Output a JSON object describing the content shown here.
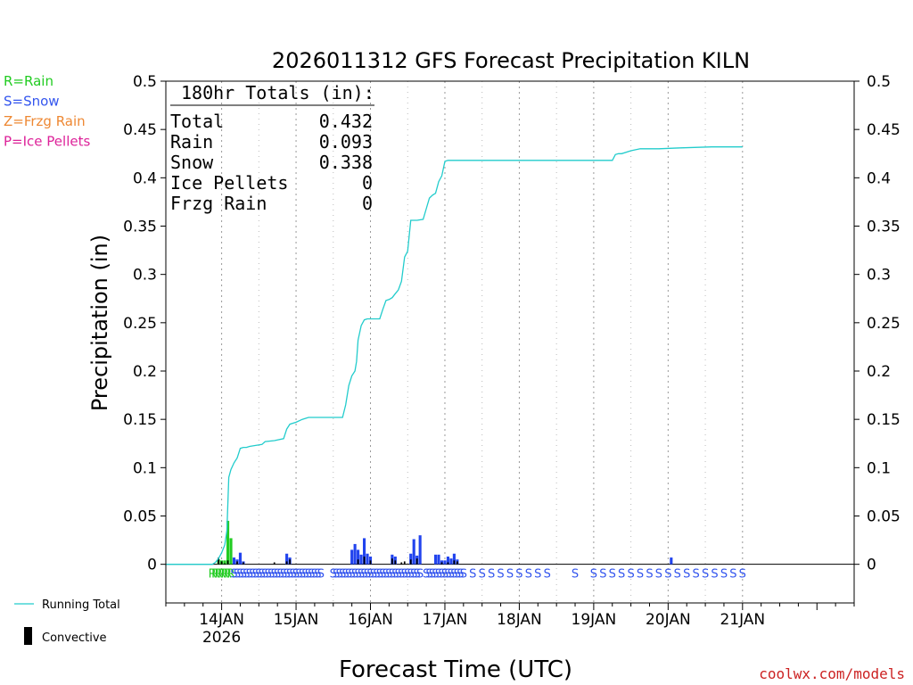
{
  "chart_data": {
    "type": "bar",
    "title": "2026011312 GFS Forecast Precipitation KILN",
    "xlabel": "Forecast Time (UTC)",
    "ylabel": "Precipitation (in)",
    "ylim": [
      -0.04,
      0.5
    ],
    "xlim_hours": [
      -6,
      216
    ],
    "y_ticks": [
      "0",
      "0.05",
      "0.1",
      "0.15",
      "0.2",
      "0.25",
      "0.3",
      "0.35",
      "0.4",
      "0.45",
      "0.5"
    ],
    "y_tick_values": [
      0,
      0.05,
      0.1,
      0.15,
      0.2,
      0.25,
      0.3,
      0.35,
      0.4,
      0.45,
      0.5
    ],
    "x_ticks": [
      {
        "label": "14JAN",
        "sub": "2026",
        "hour": 12
      },
      {
        "label": "15JAN",
        "sub": "",
        "hour": 36
      },
      {
        "label": "16JAN",
        "sub": "",
        "hour": 60
      },
      {
        "label": "17JAN",
        "sub": "",
        "hour": 84
      },
      {
        "label": "18JAN",
        "sub": "",
        "hour": 108
      },
      {
        "label": "19JAN",
        "sub": "",
        "hour": 132
      },
      {
        "label": "20JAN",
        "sub": "",
        "hour": 156
      },
      {
        "label": "21JAN",
        "sub": "",
        "hour": 180
      }
    ],
    "grid_minor_hours": [
      24,
      48,
      72,
      96,
      120,
      144,
      168
    ],
    "legend_types": [
      {
        "text": "R=Rain",
        "color": "#22cc22"
      },
      {
        "text": "S=Snow",
        "color": "#3355ee"
      },
      {
        "text": "Z=Frzg Rain",
        "color": "#ee8833"
      },
      {
        "text": "P=Ice Pellets",
        "color": "#dd2299"
      }
    ],
    "legend_series": [
      {
        "text": "Running Total",
        "color": "#22cccc"
      },
      {
        "text": "Convective",
        "color": "#000000"
      }
    ],
    "totals": {
      "header": "180hr Totals (in):",
      "rows": [
        {
          "label": "Total",
          "value": "0.432"
        },
        {
          "label": "Rain",
          "value": "0.093"
        },
        {
          "label": "Snow",
          "value": "0.338"
        },
        {
          "label": "Ice Pellets",
          "value": "0"
        },
        {
          "label": "Frzg Rain",
          "value": "0"
        }
      ]
    },
    "series": [
      {
        "name": "Running Total",
        "color": "#22cccc",
        "points": [
          [
            -6,
            0
          ],
          [
            9,
            0
          ],
          [
            10,
            0.002
          ],
          [
            11,
            0.006
          ],
          [
            12,
            0.012
          ],
          [
            13,
            0.02
          ],
          [
            13.7,
            0.035
          ],
          [
            14.3,
            0.09
          ],
          [
            15,
            0.098
          ],
          [
            16,
            0.105
          ],
          [
            17,
            0.11
          ],
          [
            18,
            0.12
          ],
          [
            19,
            0.121
          ],
          [
            20,
            0.121
          ],
          [
            21,
            0.122
          ],
          [
            23,
            0.123
          ],
          [
            25,
            0.124
          ],
          [
            26,
            0.127
          ],
          [
            29,
            0.128
          ],
          [
            32,
            0.13
          ],
          [
            33,
            0.14
          ],
          [
            34,
            0.145
          ],
          [
            36,
            0.147
          ],
          [
            38,
            0.15
          ],
          [
            40,
            0.152
          ],
          [
            45,
            0.152
          ],
          [
            51,
            0.152
          ],
          [
            52,
            0.165
          ],
          [
            53,
            0.185
          ],
          [
            54,
            0.195
          ],
          [
            55,
            0.2
          ],
          [
            55.5,
            0.21
          ],
          [
            56,
            0.232
          ],
          [
            57,
            0.247
          ],
          [
            58,
            0.253
          ],
          [
            59,
            0.254
          ],
          [
            63,
            0.254
          ],
          [
            64,
            0.264
          ],
          [
            65,
            0.273
          ],
          [
            66,
            0.274
          ],
          [
            67,
            0.276
          ],
          [
            68,
            0.28
          ],
          [
            69,
            0.284
          ],
          [
            70,
            0.293
          ],
          [
            71,
            0.318
          ],
          [
            72,
            0.324
          ],
          [
            73,
            0.356
          ],
          [
            75,
            0.356
          ],
          [
            77,
            0.357
          ],
          [
            78,
            0.368
          ],
          [
            79,
            0.379
          ],
          [
            80,
            0.382
          ],
          [
            81,
            0.384
          ],
          [
            82,
            0.396
          ],
          [
            83,
            0.402
          ],
          [
            84,
            0.417
          ],
          [
            85,
            0.418
          ],
          [
            96,
            0.418
          ],
          [
            108,
            0.418
          ],
          [
            120,
            0.418
          ],
          [
            138,
            0.418
          ],
          [
            139,
            0.424
          ],
          [
            140,
            0.425
          ],
          [
            141,
            0.425
          ],
          [
            144,
            0.428
          ],
          [
            147,
            0.43
          ],
          [
            153,
            0.43
          ],
          [
            160,
            0.431
          ],
          [
            170,
            0.432
          ],
          [
            180,
            0.432
          ]
        ]
      },
      {
        "name": "Rain",
        "color": "#22cc22",
        "bars": [
          [
            11,
            0.005
          ],
          [
            12,
            0.004
          ],
          [
            13,
            0.004
          ],
          [
            14,
            0.045
          ],
          [
            15,
            0.027
          ]
        ]
      },
      {
        "name": "Snow",
        "color": "#2244ee",
        "bars": [
          [
            16,
            0.007
          ],
          [
            17,
            0.005
          ],
          [
            18,
            0.012
          ],
          [
            19,
            0.003
          ],
          [
            33,
            0.011
          ],
          [
            34,
            0.007
          ],
          [
            54,
            0.015
          ],
          [
            55,
            0.021
          ],
          [
            56,
            0.015
          ],
          [
            57,
            0.01
          ],
          [
            58,
            0.027
          ],
          [
            59,
            0.011
          ],
          [
            60,
            0.008
          ],
          [
            67,
            0.01
          ],
          [
            68,
            0.008
          ],
          [
            73,
            0.011
          ],
          [
            74,
            0.026
          ],
          [
            75,
            0.009
          ],
          [
            76,
            0.03
          ],
          [
            81,
            0.01
          ],
          [
            82,
            0.01
          ],
          [
            83,
            0.004
          ],
          [
            84,
            0.004
          ],
          [
            85,
            0.008
          ],
          [
            86,
            0.006
          ],
          [
            87,
            0.011
          ],
          [
            88,
            0.005
          ],
          [
            157,
            0.007
          ]
        ]
      },
      {
        "name": "Convective",
        "color": "#000000",
        "bars": [
          [
            11,
            0.007
          ],
          [
            12,
            0.003
          ],
          [
            13,
            0.001
          ],
          [
            14,
            0.004
          ],
          [
            17,
            0.003
          ],
          [
            19,
            0.002
          ],
          [
            29,
            0.002
          ],
          [
            33,
            0.003
          ],
          [
            34,
            0.005
          ],
          [
            56,
            0.005
          ],
          [
            58,
            0.008
          ],
          [
            60,
            0.004
          ],
          [
            67,
            0.006
          ],
          [
            68,
            0.004
          ],
          [
            70,
            0.002
          ],
          [
            71,
            0.003
          ],
          [
            73,
            0.005
          ],
          [
            75,
            0.006
          ],
          [
            83,
            0.002
          ],
          [
            85,
            0.002
          ],
          [
            87,
            0.004
          ],
          [
            88,
            0.003
          ]
        ]
      }
    ],
    "type_rows": [
      {
        "symbol": "R",
        "color": "#22cc22",
        "start": 9,
        "end": 15
      },
      {
        "symbol": "S",
        "color": "#3355ee",
        "start": 16,
        "end": 44
      },
      {
        "symbol": "S",
        "color": "#3355ee",
        "start": 48,
        "end": 76
      },
      {
        "symbol": "S",
        "color": "#3355ee",
        "start": 78,
        "end": 90
      }
    ],
    "type_singles": [
      {
        "symbol": "S",
        "color": "#3355ee",
        "hours": [
          93,
          96,
          99,
          102,
          105,
          108,
          111,
          114,
          117,
          126,
          132,
          135,
          138,
          141,
          144,
          147,
          150,
          153,
          156,
          159,
          162,
          165,
          168,
          171,
          174,
          177,
          180
        ]
      }
    ],
    "source": "coolwx.com/models"
  }
}
